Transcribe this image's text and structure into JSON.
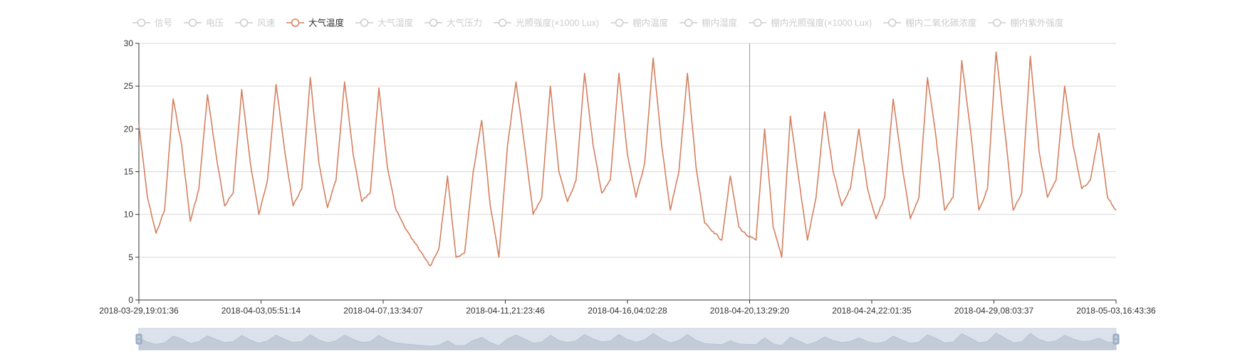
{
  "legend": [
    {
      "label": "信号",
      "active": false
    },
    {
      "label": "电压",
      "active": false
    },
    {
      "label": "风速",
      "active": false
    },
    {
      "label": "大气温度",
      "active": true
    },
    {
      "label": "大气湿度",
      "active": false
    },
    {
      "label": "大气压力",
      "active": false
    },
    {
      "label": "光照强度(×1000 Lux)",
      "active": false
    },
    {
      "label": "棚内温度",
      "active": false
    },
    {
      "label": "棚内湿度",
      "active": false
    },
    {
      "label": "棚内光照强度(×1000 Lux)",
      "active": false
    },
    {
      "label": "棚内二氧化碳浓度",
      "active": false
    },
    {
      "label": "棚内紫外强度",
      "active": false
    }
  ],
  "colors": {
    "series": "#d4805f",
    "inactive": "#cccccc",
    "grid": "#d9d9d9",
    "axis": "#333333",
    "zoom_fill": "#dbe2ec",
    "zoom_line": "#b8c1cf",
    "handle": "#a7b7cc"
  },
  "chart_data": {
    "type": "line",
    "title": "",
    "xlabel": "",
    "ylabel": "",
    "ylim": [
      0,
      30
    ],
    "y_ticks": [
      0,
      5,
      10,
      15,
      20,
      25,
      30
    ],
    "x_ticks": [
      "2018-03-29,19:01:36",
      "2018-04-03,05:51:14",
      "2018-04-07,13:34:07",
      "2018-04-11,21:23:46",
      "2018-04-16,04:02:28",
      "2018-04-20,13:29:20",
      "2018-04-24,22:01:35",
      "2018-04-29,08:03:37",
      "2018-05-03,16:43:36"
    ],
    "grid": true,
    "legend_position": "top",
    "series": [
      {
        "name": "大气温度",
        "x": [
          0,
          0.3,
          0.6,
          0.9,
          1.2,
          1.5,
          1.8,
          2.1,
          2.4,
          2.7,
          3.0,
          3.3,
          3.6,
          3.9,
          4.2,
          4.5,
          4.8,
          5.1,
          5.4,
          5.7,
          6.0,
          6.3,
          6.6,
          6.9,
          7.2,
          7.5,
          7.8,
          8.1,
          8.4,
          8.7,
          9.0,
          9.3,
          9.6,
          9.9,
          10.2,
          10.5,
          10.8,
          11.1,
          11.4,
          11.7,
          12.0,
          12.3,
          12.6,
          12.9,
          13.2,
          13.5,
          13.8,
          14.1,
          14.4,
          14.7,
          15.0,
          15.3,
          15.6,
          15.9,
          16.2,
          16.5,
          16.8,
          17.1,
          17.4,
          17.7,
          18.0,
          18.3,
          18.6,
          18.9,
          19.2,
          19.5,
          19.8,
          20.1,
          20.4,
          20.7,
          21.0,
          21.3,
          21.6,
          21.9,
          22.2,
          22.5,
          22.8,
          23.1,
          23.4,
          23.7,
          24.0,
          24.3,
          24.6,
          24.9,
          25.2,
          25.5,
          25.8,
          26.1,
          26.4,
          26.7,
          27.0,
          27.3,
          27.6,
          27.9,
          28.2,
          28.5,
          28.8,
          29.1,
          29.4,
          29.7,
          30.0,
          30.3,
          30.6,
          30.9,
          31.2,
          31.5,
          31.8,
          32.1,
          32.4,
          32.7,
          33.0,
          33.3,
          33.6,
          33.9,
          34.2
        ],
        "y": [
          20.5,
          12.0,
          7.8,
          10.5,
          23.5,
          18.0,
          9.2,
          13.0,
          24.0,
          17.0,
          11.0,
          12.5,
          24.6,
          16.0,
          10.0,
          14.0,
          25.2,
          17.5,
          11.0,
          13.0,
          26.0,
          16.0,
          10.8,
          14.0,
          25.5,
          17.0,
          11.5,
          12.5,
          24.8,
          15.5,
          10.5,
          8.5,
          7.0,
          5.5,
          4.0,
          6.0,
          14.5,
          5.0,
          5.5,
          15.0,
          21.0,
          11.0,
          5.0,
          18.0,
          25.5,
          18.0,
          10.0,
          12.0,
          25.0,
          15.0,
          11.5,
          14.0,
          26.5,
          18.0,
          12.5,
          14.0,
          26.5,
          17.0,
          12.0,
          16.0,
          28.3,
          18.0,
          10.5,
          15.0,
          26.5,
          15.5,
          9.0,
          8.0,
          7.0,
          14.5,
          8.5,
          7.5,
          7.0,
          20.0,
          8.5,
          5.0,
          21.5,
          14.0,
          7.0,
          12.0,
          22.0,
          15.0,
          11.0,
          13.0,
          20.0,
          13.0,
          9.5,
          12.0,
          23.5,
          16.0,
          9.5,
          12.0,
          26.0,
          19.0,
          10.5,
          12.0,
          28.0,
          20.0,
          10.5,
          13.0,
          29.0,
          20.0,
          10.5,
          12.5,
          28.5,
          17.5,
          12.0,
          14.0,
          25.0,
          18.0,
          13.0,
          14.0,
          19.5,
          12.0,
          10.5
        ]
      }
    ]
  }
}
